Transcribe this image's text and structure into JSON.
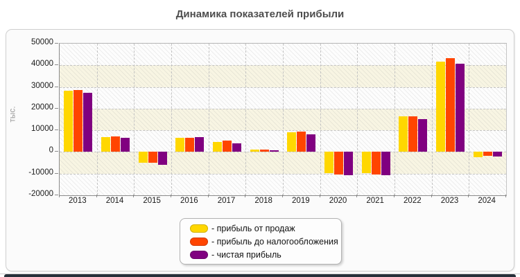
{
  "title": "Динамика показателей прибыли",
  "y_axis_label": "тыс.",
  "chart_data": {
    "type": "bar",
    "title": "Динамика показателей прибыли",
    "xlabel": "",
    "ylabel": "тыс.",
    "ylim": [
      -20000,
      50000
    ],
    "ytick_step": 10000,
    "y_ticks": [
      "50000",
      "40000",
      "30000",
      "20000",
      "10000",
      "0",
      "-10000",
      "-20000"
    ],
    "grid": true,
    "legend_position": "bottom",
    "categories": [
      "2013",
      "2014",
      "2015",
      "2016",
      "2017",
      "2018",
      "2019",
      "2020",
      "2021",
      "2022",
      "2023",
      "2024"
    ],
    "series": [
      {
        "name": "прибыль от продаж",
        "color": "#FFD700",
        "values": [
          28200,
          6900,
          -5100,
          6400,
          4500,
          1000,
          9100,
          -9900,
          -9900,
          16300,
          41600,
          -2300
        ]
      },
      {
        "name": "прибыль до налогообложения",
        "color": "#FF4500",
        "values": [
          28500,
          7200,
          -4900,
          6400,
          5100,
          1200,
          9400,
          -10300,
          -10300,
          16300,
          43200,
          -1700
        ]
      },
      {
        "name": "чистая прибыль",
        "color": "#800080",
        "values": [
          27400,
          6500,
          -5800,
          6700,
          4100,
          800,
          8100,
          -10600,
          -10600,
          15100,
          40700,
          -2200
        ]
      }
    ]
  },
  "legend": {
    "items": [
      {
        "label": "- прибыль от продаж",
        "color": "#FFD700"
      },
      {
        "label": "- прибыль до налогообложения",
        "color": "#FF4500"
      },
      {
        "label": "- чистая прибыль",
        "color": "#800080"
      }
    ]
  }
}
